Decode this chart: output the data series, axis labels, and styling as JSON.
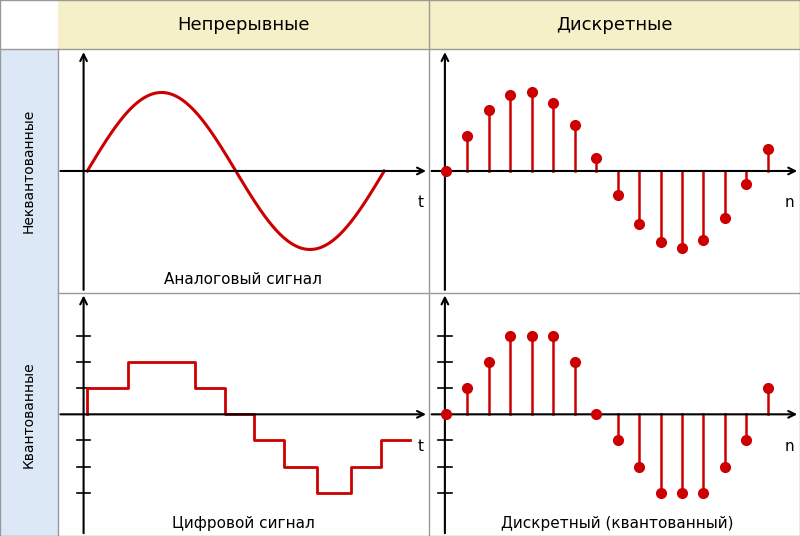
{
  "title_continuous": "Непрерывные",
  "title_discrete": "Дискретные",
  "label_unquantized": "Неквантованные",
  "label_quantized": "Квантованные",
  "label_analog": "Аналоговый сигнал",
  "label_digital": "Цифровой сигнал",
  "label_discrete_quantized": "Дискретный (квантованный)",
  "header_bg": "#f5f0c8",
  "left_bg": "#dce8f5",
  "plot_bg": "#ffffff",
  "signal_color": "#cc0000",
  "border_color": "#999999",
  "stem_unquant_y": [
    0.0,
    0.45,
    0.78,
    0.97,
    1.0,
    0.87,
    0.59,
    0.16,
    -0.3,
    -0.67,
    -0.91,
    -0.98,
    -0.88,
    -0.6,
    -0.17,
    0.28
  ],
  "stem_quant_y": [
    0.0,
    0.33,
    0.67,
    1.0,
    1.0,
    1.0,
    0.67,
    0.0,
    -0.33,
    -0.67,
    -1.0,
    -1.0,
    -1.0,
    -0.67,
    -0.33,
    0.33
  ],
  "quant_levels": [
    -1.0,
    -0.67,
    -0.33,
    0.33,
    0.67,
    1.0
  ],
  "digital_signal_x": [
    0.0,
    0.0,
    0.55,
    0.55,
    0.95,
    0.95,
    1.45,
    1.45,
    1.85,
    1.85,
    2.25,
    2.25,
    2.65,
    2.65,
    3.1,
    3.1,
    3.55,
    3.55,
    3.95,
    3.95,
    4.35
  ],
  "digital_signal_y": [
    0.0,
    0.33,
    0.33,
    0.67,
    0.67,
    0.67,
    0.67,
    0.33,
    0.33,
    0.0,
    0.0,
    -0.33,
    -0.33,
    -0.67,
    -0.67,
    -1.0,
    -1.0,
    -0.67,
    -0.67,
    -0.33,
    -0.33
  ]
}
